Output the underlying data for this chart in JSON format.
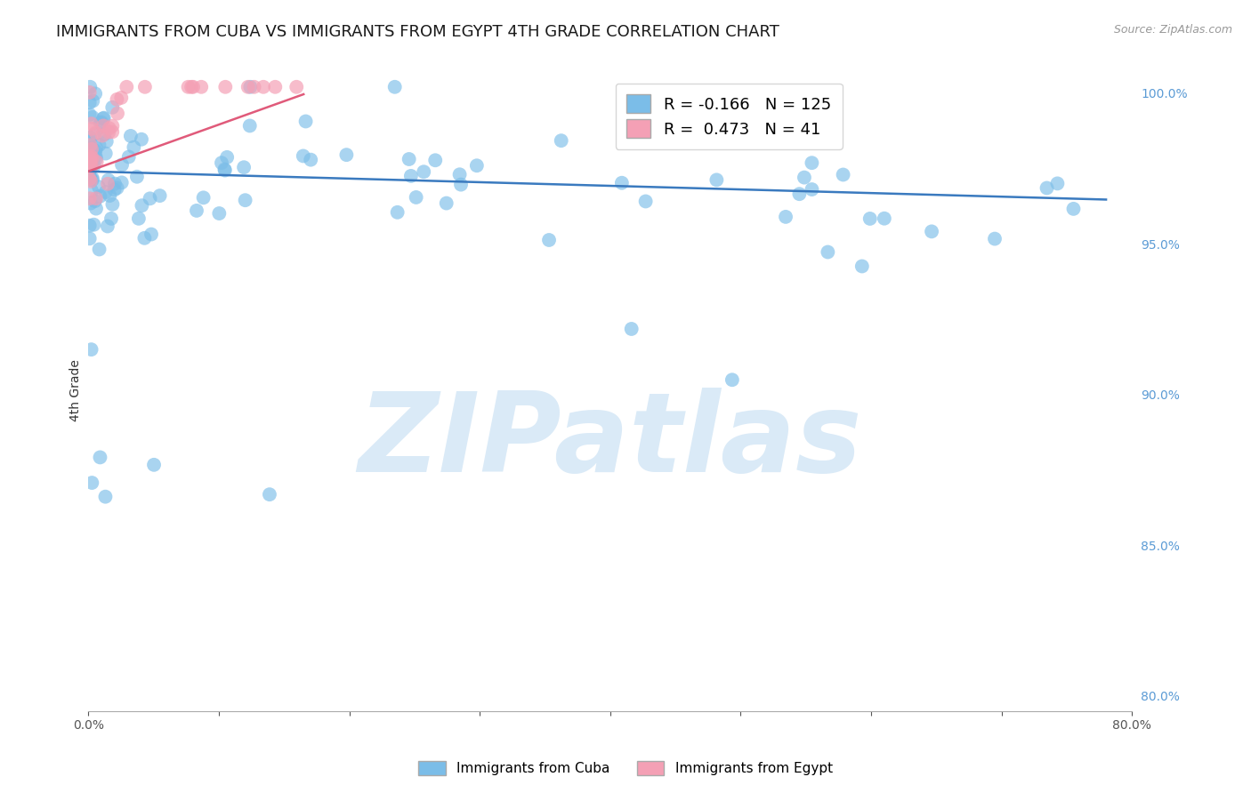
{
  "title": "IMMIGRANTS FROM CUBA VS IMMIGRANTS FROM EGYPT 4TH GRADE CORRELATION CHART",
  "source_text": "Source: ZipAtlas.com",
  "ylabel": "4th Grade",
  "xlim": [
    0.0,
    0.8
  ],
  "ylim": [
    0.795,
    1.008
  ],
  "x_ticks": [
    0.0,
    0.1,
    0.2,
    0.3,
    0.4,
    0.5,
    0.6,
    0.7,
    0.8
  ],
  "x_tick_labels": [
    "0.0%",
    "",
    "",
    "",
    "",
    "",
    "",
    "",
    "80.0%"
  ],
  "y_ticks_right": [
    0.8,
    0.85,
    0.9,
    0.95,
    1.0
  ],
  "y_tick_labels_right": [
    "80.0%",
    "85.0%",
    "90.0%",
    "95.0%",
    "100.0%"
  ],
  "grid_color": "#cccccc",
  "background_color": "#ffffff",
  "cuba_color": "#7bbde8",
  "egypt_color": "#f4a0b5",
  "cuba_line_color": "#3a7abf",
  "egypt_line_color": "#e05a7a",
  "r_cuba": -0.166,
  "n_cuba": 125,
  "r_egypt": 0.473,
  "n_egypt": 41,
  "title_fontsize": 13,
  "axis_label_fontsize": 10,
  "tick_fontsize": 10,
  "right_tick_color": "#5b9bd5",
  "watermark_color": "#daeaf7",
  "cuba_seed": 12345,
  "egypt_seed": 67890
}
